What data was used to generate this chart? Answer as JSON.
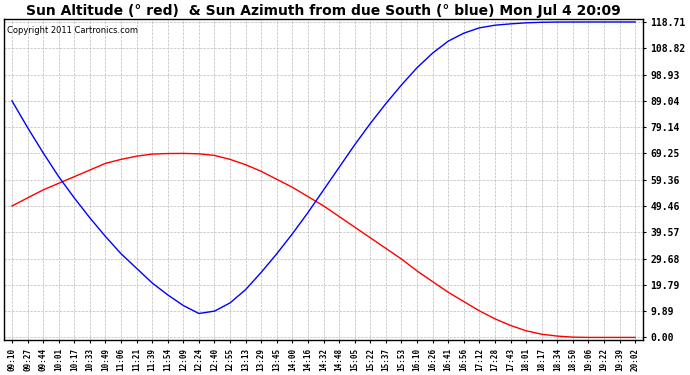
{
  "title": "Sun Altitude (° red)  & Sun Azimuth from due South (° blue) Mon Jul 4 20:09",
  "copyright": "Copyright 2011 Cartronics.com",
  "yticks": [
    0.0,
    9.89,
    19.79,
    29.68,
    39.57,
    49.46,
    59.36,
    69.25,
    79.14,
    89.04,
    98.93,
    108.82,
    118.71
  ],
  "xtick_labels": [
    "09:10",
    "09:27",
    "09:44",
    "10:01",
    "10:17",
    "10:33",
    "10:49",
    "11:06",
    "11:21",
    "11:39",
    "11:54",
    "12:09",
    "12:24",
    "12:40",
    "12:55",
    "13:13",
    "13:29",
    "13:45",
    "14:00",
    "14:16",
    "14:32",
    "14:48",
    "15:05",
    "15:22",
    "15:37",
    "15:53",
    "16:10",
    "16:26",
    "16:41",
    "16:56",
    "17:12",
    "17:28",
    "17:43",
    "18:01",
    "18:17",
    "18:34",
    "18:50",
    "19:06",
    "19:22",
    "19:39",
    "20:02"
  ],
  "altitude_values": [
    49.46,
    52.5,
    55.5,
    58.0,
    60.5,
    63.0,
    65.5,
    67.0,
    68.2,
    69.0,
    69.2,
    69.25,
    69.1,
    68.5,
    67.0,
    65.0,
    62.5,
    59.5,
    56.5,
    53.0,
    49.5,
    45.5,
    41.5,
    37.5,
    33.5,
    29.5,
    25.0,
    21.0,
    17.0,
    13.5,
    10.0,
    7.0,
    4.5,
    2.5,
    1.2,
    0.5,
    0.1,
    0.0,
    0.0,
    0.0,
    0.0
  ],
  "azimuth_values": [
    89.04,
    79.0,
    69.5,
    60.5,
    52.5,
    45.0,
    38.0,
    31.5,
    26.0,
    20.5,
    16.0,
    12.0,
    9.0,
    9.89,
    13.0,
    18.0,
    24.5,
    31.5,
    39.0,
    47.0,
    55.5,
    64.0,
    72.5,
    80.5,
    88.0,
    95.0,
    101.5,
    107.0,
    111.5,
    114.5,
    116.5,
    117.5,
    118.0,
    118.4,
    118.6,
    118.68,
    118.7,
    118.71,
    118.71,
    118.71,
    118.71
  ],
  "altitude_color": "#ff0000",
  "azimuth_color": "#0000ff",
  "background_color": "#ffffff",
  "grid_color": "#bbbbbb",
  "title_fontsize": 10,
  "ymin": 0.0,
  "ymax": 118.71
}
